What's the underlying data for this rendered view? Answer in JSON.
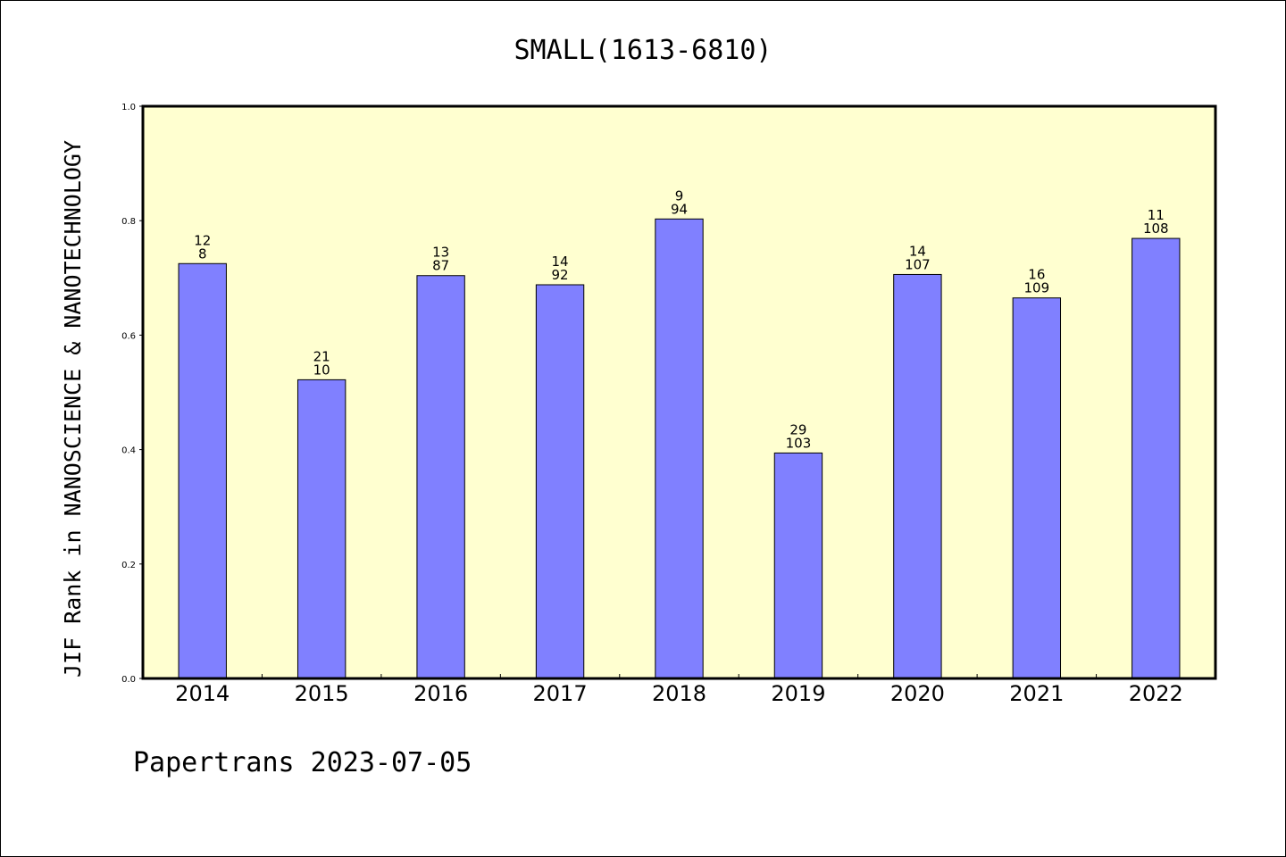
{
  "chart_data": {
    "type": "bar",
    "title": "SMALL(1613-6810)",
    "ylabel": "JIF Rank in NANOSCIENCE & NANOTECHNOLOGY",
    "xlabel": "",
    "ylim": [
      0.0,
      1.0
    ],
    "yticks": [
      "0.0",
      "0.2",
      "0.4",
      "0.6",
      "0.8",
      "1.0"
    ],
    "grid": false,
    "categories": [
      "2014",
      "2015",
      "2016",
      "2017",
      "2018",
      "2019",
      "2020",
      "2021",
      "2022"
    ],
    "values": [
      0.725,
      0.522,
      0.704,
      0.688,
      0.803,
      0.394,
      0.706,
      0.665,
      0.769
    ],
    "labels_top": [
      "12",
      "21",
      "13",
      "14",
      "9",
      "29",
      "14",
      "16",
      "11"
    ],
    "labels_bottom": [
      "8",
      "10",
      "87",
      "92",
      "94",
      "103",
      "107",
      "109",
      "108"
    ],
    "colors": {
      "bar": "#8080ff",
      "plot_background": "#ffffd0",
      "axis": "#000000"
    }
  },
  "footer": "Papertrans 2023-07-05"
}
